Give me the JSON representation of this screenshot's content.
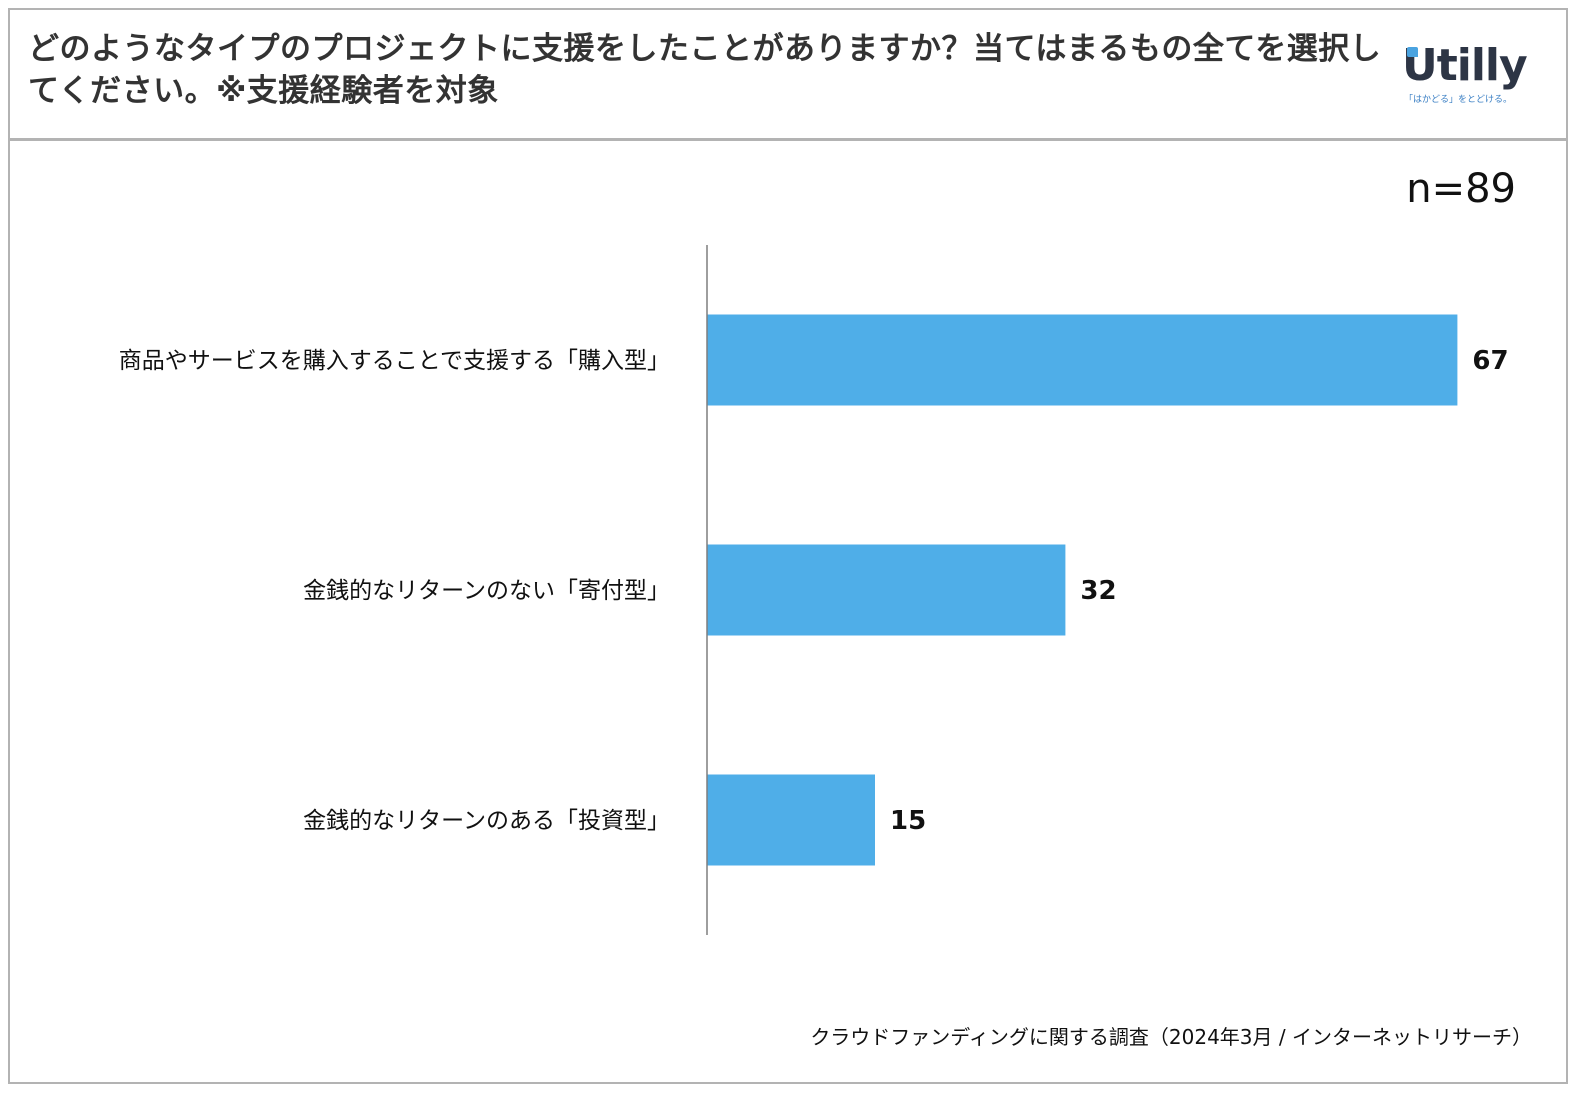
{
  "title": "どのようなタイプのプロジェクトに支援をしたことがありますか？当てはまるもの全てを選択してください。※支援経験者を対象",
  "logo": {
    "word": "Utilly",
    "tagline": "「はかどる」をとどける。"
  },
  "sample_size": "n=89",
  "source": "クラウドファンディングに関する調査（2024年3月 / インターネットリサーチ）",
  "colors": {
    "bar": "#4faee8",
    "axis": "#7f7f7f",
    "title": "#333333",
    "logo_text": "#2d3545",
    "logo_accent": "#4aa3e0"
  },
  "chart_data": {
    "type": "bar",
    "orientation": "horizontal",
    "title": "どのようなタイプのプロジェクトに支援をしたことがありますか？当てはまるもの全てを選択してください。※支援経験者を対象",
    "xlabel": "",
    "ylabel": "",
    "categories": [
      "商品やサービスを購入することで支援する「購入型」",
      "金銭的なリターンのない「寄付型」",
      "金銭的なリターンのある「投資型」"
    ],
    "values": [
      67,
      32,
      15
    ],
    "grid": false,
    "legend": "none"
  }
}
